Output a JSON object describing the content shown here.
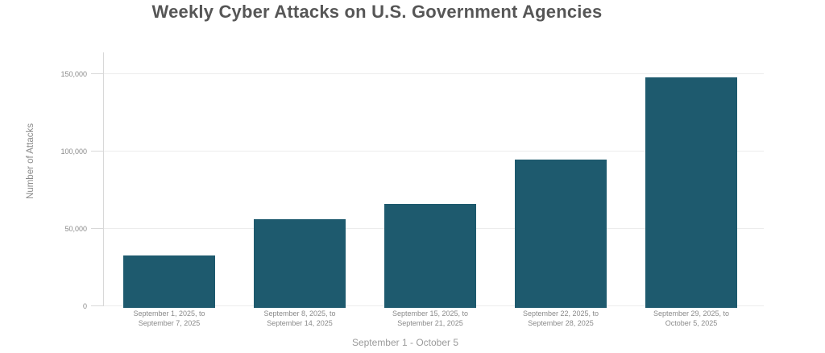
{
  "chart_data": {
    "type": "bar",
    "title": "Weekly Cyber Attacks on U.S. Government Agencies",
    "xlabel": "September 1 - October 5",
    "ylabel": "Number of Attacks",
    "categories": [
      "September 1, 2025, to\nSeptember 7, 2025",
      "September 8, 2025, to\nSeptember 14, 2025",
      "September 15, 2025, to\nSeptember 21, 2025",
      "September 22, 2025, to\nSeptember 28, 2025",
      "September 29, 2025, to\nOctober 5, 2025"
    ],
    "values": [
      33000,
      56000,
      66000,
      95000,
      148000
    ],
    "yticks": [
      0,
      50000,
      100000,
      150000
    ],
    "ytick_labels": [
      "0",
      "50,000",
      "100,000",
      "150,000"
    ],
    "ylim": [
      0,
      164000
    ],
    "grid": "horizontal",
    "legend": "none",
    "bar_color": "#1e5a6e"
  },
  "colors": {
    "bar": "#1e5a6e",
    "title-text": "#565656",
    "axis-text": "#8a8a8a",
    "caption-text": "#9b9b9b",
    "gridline": "#ececec",
    "axis-line": "#d8d8d8",
    "background": "#ffffff"
  }
}
